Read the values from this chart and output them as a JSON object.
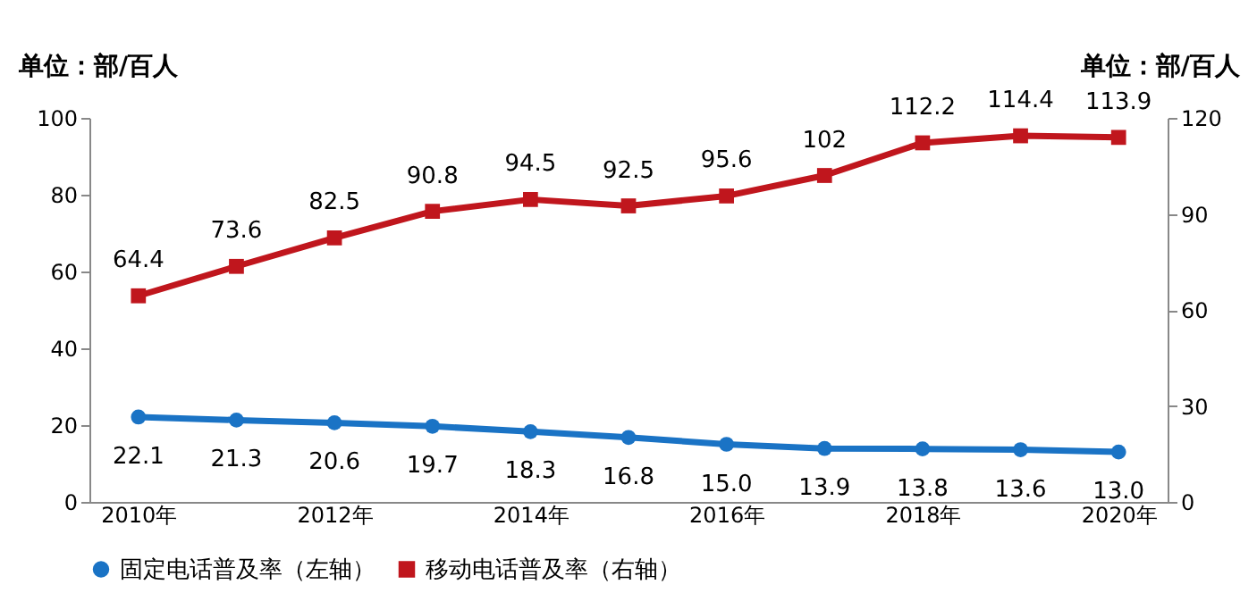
{
  "chart_data": {
    "type": "line",
    "ylabel": "单位：部/百人",
    "y2label": "单位：部/百人",
    "categories": [
      "2010年",
      null,
      "2012年",
      null,
      "2014年",
      null,
      "2016年",
      null,
      "2018年",
      null,
      "2020年"
    ],
    "series": [
      {
        "name": "固定电话普及率（左轴）",
        "color": "#1a73c5",
        "marker": "circle",
        "values": [
          22.1,
          21.3,
          20.6,
          19.7,
          18.3,
          16.8,
          15.0,
          13.9,
          13.8,
          13.6,
          13.0
        ],
        "value_labels": [
          "22.1",
          "21.3",
          "20.6",
          "19.7",
          "18.3",
          "16.8",
          "15.0",
          "13.9",
          "13.8",
          "13.6",
          "13.0"
        ]
      },
      {
        "name": "移动电话普及率（右轴）",
        "color": "#c0161d",
        "marker": "square",
        "axis": "y2",
        "values": [
          64.4,
          73.6,
          82.5,
          90.8,
          94.5,
          92.5,
          95.6,
          102,
          112.2,
          114.4,
          113.9
        ],
        "value_labels": [
          "64.4",
          "73.6",
          "82.5",
          "90.8",
          "94.5",
          "92.5",
          "95.6",
          "102",
          "112.2",
          "114.4",
          "113.9"
        ]
      }
    ],
    "ylim": [
      0,
      100
    ],
    "yticks": [
      0,
      20,
      40,
      60,
      80,
      100
    ],
    "y2lim": [
      0,
      120
    ],
    "y2ticks": [
      0,
      30,
      60,
      90,
      120
    ],
    "legend": "bottom",
    "grid": false
  }
}
